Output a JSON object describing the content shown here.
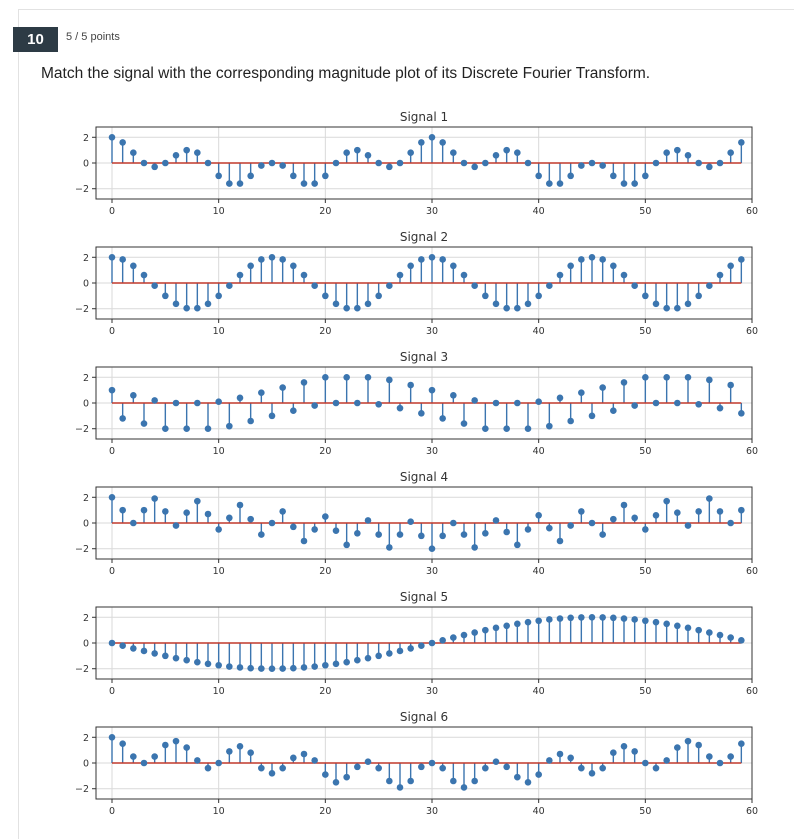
{
  "question": {
    "number": "10",
    "points": "5 / 5 points",
    "text": "Match the signal with the corresponding magnitude plot of its Discrete Fourier Transform."
  },
  "colors": {
    "stem": "#3b75af",
    "baseline": "#c0392b",
    "grid": "#d9d9d9"
  },
  "chart_data": [
    {
      "type": "stem",
      "title": "Signal 1",
      "xlim": [
        -1.5,
        60
      ],
      "ylim": [
        -2.8,
        2.8
      ],
      "xticks": [
        0,
        10,
        20,
        30,
        40,
        50,
        60
      ],
      "yticks": [
        2,
        0,
        -2
      ],
      "x": [
        0,
        1,
        2,
        3,
        4,
        5,
        6,
        7,
        8,
        9,
        10,
        11,
        12,
        13,
        14,
        15,
        16,
        17,
        18,
        19,
        20,
        21,
        22,
        23,
        24,
        25,
        26,
        27,
        28,
        29,
        30,
        31,
        32,
        33,
        34,
        35,
        36,
        37,
        38,
        39,
        40,
        41,
        42,
        43,
        44,
        45,
        46,
        47,
        48,
        49,
        50,
        51,
        52,
        53,
        54,
        55,
        56,
        57,
        58,
        59
      ],
      "values": [
        2.0,
        1.6,
        0.8,
        0.0,
        -0.3,
        0.0,
        0.6,
        1.0,
        0.8,
        0.0,
        -1.0,
        -1.6,
        -1.6,
        -1.0,
        -0.2,
        0.0,
        -0.2,
        -1.0,
        -1.6,
        -1.6,
        -1.0,
        0.0,
        0.8,
        1.0,
        0.6,
        0.0,
        -0.3,
        0.0,
        0.8,
        1.6,
        2.0,
        1.6,
        0.8,
        0.0,
        -0.3,
        0.0,
        0.6,
        1.0,
        0.8,
        0.0,
        -1.0,
        -1.6,
        -1.6,
        -1.0,
        -0.2,
        0.0,
        -0.2,
        -1.0,
        -1.6,
        -1.6,
        -1.0,
        0.0,
        0.8,
        1.0,
        0.6,
        0.0,
        -0.3,
        0.0,
        0.8,
        1.6
      ]
    },
    {
      "type": "stem",
      "title": "Signal 2",
      "xlim": [
        -1.5,
        60
      ],
      "ylim": [
        -2.8,
        2.8
      ],
      "xticks": [
        0,
        10,
        20,
        30,
        40,
        50,
        60
      ],
      "yticks": [
        2,
        0,
        -2
      ],
      "x": [
        0,
        1,
        2,
        3,
        4,
        5,
        6,
        7,
        8,
        9,
        10,
        11,
        12,
        13,
        14,
        15,
        16,
        17,
        18,
        19,
        20,
        21,
        22,
        23,
        24,
        25,
        26,
        27,
        28,
        29,
        30,
        31,
        32,
        33,
        34,
        35,
        36,
        37,
        38,
        39,
        40,
        41,
        42,
        43,
        44,
        45,
        46,
        47,
        48,
        49,
        50,
        51,
        52,
        53,
        54,
        55,
        56,
        57,
        58,
        59
      ],
      "values": [
        2.0,
        1.83,
        1.34,
        0.62,
        -0.21,
        -1.0,
        -1.62,
        -1.96,
        -1.96,
        -1.62,
        -1.0,
        -0.21,
        0.62,
        1.34,
        1.83,
        2.0,
        1.83,
        1.34,
        0.62,
        -0.21,
        -1.0,
        -1.62,
        -1.96,
        -1.96,
        -1.62,
        -1.0,
        -0.21,
        0.62,
        1.34,
        1.83,
        2.0,
        1.83,
        1.34,
        0.62,
        -0.21,
        -1.0,
        -1.62,
        -1.96,
        -1.96,
        -1.62,
        -1.0,
        -0.21,
        0.62,
        1.34,
        1.83,
        2.0,
        1.83,
        1.34,
        0.62,
        -0.21,
        -1.0,
        -1.62,
        -1.96,
        -1.96,
        -1.62,
        -1.0,
        -0.21,
        0.62,
        1.34,
        1.83
      ]
    },
    {
      "type": "stem",
      "title": "Signal 3",
      "xlim": [
        -1.5,
        60
      ],
      "ylim": [
        -2.8,
        2.8
      ],
      "xticks": [
        0,
        10,
        20,
        30,
        40,
        50,
        60
      ],
      "yticks": [
        2,
        0,
        -2
      ],
      "x": [
        0,
        1,
        2,
        3,
        4,
        5,
        6,
        7,
        8,
        9,
        10,
        11,
        12,
        13,
        14,
        15,
        16,
        17,
        18,
        19,
        20,
        21,
        22,
        23,
        24,
        25,
        26,
        27,
        28,
        29,
        30,
        31,
        32,
        33,
        34,
        35,
        36,
        37,
        38,
        39,
        40,
        41,
        42,
        43,
        44,
        45,
        46,
        47,
        48,
        49,
        50,
        51,
        52,
        53,
        54,
        55,
        56,
        57,
        58,
        59
      ],
      "values": [
        1.0,
        -1.2,
        0.6,
        -1.6,
        0.2,
        -2.0,
        0.0,
        -2.0,
        0.0,
        -2.0,
        0.1,
        -1.8,
        0.4,
        -1.4,
        0.8,
        -1.0,
        1.2,
        -0.6,
        1.6,
        -0.2,
        2.0,
        0.0,
        2.0,
        0.0,
        2.0,
        -0.1,
        1.8,
        -0.4,
        1.4,
        -0.8,
        1.0,
        -1.2,
        0.6,
        -1.6,
        0.2,
        -2.0,
        0.0,
        -2.0,
        0.0,
        -2.0,
        0.1,
        -1.8,
        0.4,
        -1.4,
        0.8,
        -1.0,
        1.2,
        -0.6,
        1.6,
        -0.2,
        2.0,
        0.0,
        2.0,
        0.0,
        2.0,
        -0.1,
        1.8,
        -0.4,
        1.4,
        -0.8
      ]
    },
    {
      "type": "stem",
      "title": "Signal 4",
      "xlim": [
        -1.5,
        60
      ],
      "ylim": [
        -2.8,
        2.8
      ],
      "xticks": [
        0,
        10,
        20,
        30,
        40,
        50,
        60
      ],
      "yticks": [
        2,
        0,
        -2
      ],
      "x": [
        0,
        1,
        2,
        3,
        4,
        5,
        6,
        7,
        8,
        9,
        10,
        11,
        12,
        13,
        14,
        15,
        16,
        17,
        18,
        19,
        20,
        21,
        22,
        23,
        24,
        25,
        26,
        27,
        28,
        29,
        30,
        31,
        32,
        33,
        34,
        35,
        36,
        37,
        38,
        39,
        40,
        41,
        42,
        43,
        44,
        45,
        46,
        47,
        48,
        49,
        50,
        51,
        52,
        53,
        54,
        55,
        56,
        57,
        58,
        59
      ],
      "values": [
        2.0,
        1.0,
        0.0,
        1.0,
        1.9,
        0.9,
        -0.2,
        0.8,
        1.7,
        0.7,
        -0.5,
        0.4,
        1.4,
        0.3,
        -0.9,
        0.0,
        0.9,
        -0.3,
        -1.4,
        -0.5,
        0.5,
        -0.6,
        -1.7,
        -0.8,
        0.2,
        -0.9,
        -1.9,
        -0.9,
        0.1,
        -1.0,
        -2.0,
        -1.0,
        0.0,
        -0.9,
        -1.9,
        -0.8,
        0.2,
        -0.7,
        -1.7,
        -0.5,
        0.6,
        -0.4,
        -1.4,
        -0.2,
        0.9,
        0.0,
        -0.9,
        0.3,
        1.4,
        0.4,
        -0.5,
        0.6,
        1.7,
        0.8,
        -0.2,
        0.9,
        1.9,
        0.9,
        0.0,
        1.0
      ]
    },
    {
      "type": "stem",
      "title": "Signal 5",
      "xlim": [
        -1.5,
        60
      ],
      "ylim": [
        -2.8,
        2.8
      ],
      "xticks": [
        0,
        10,
        20,
        30,
        40,
        50,
        60
      ],
      "yticks": [
        2,
        0,
        -2
      ],
      "x": [
        0,
        1,
        2,
        3,
        4,
        5,
        6,
        7,
        8,
        9,
        10,
        11,
        12,
        13,
        14,
        15,
        16,
        17,
        18,
        19,
        20,
        21,
        22,
        23,
        24,
        25,
        26,
        27,
        28,
        29,
        30,
        31,
        32,
        33,
        34,
        35,
        36,
        37,
        38,
        39,
        40,
        41,
        42,
        43,
        44,
        45,
        46,
        47,
        48,
        49,
        50,
        51,
        52,
        53,
        54,
        55,
        56,
        57,
        58,
        59
      ],
      "values": [
        0.0,
        -0.21,
        -0.42,
        -0.62,
        -0.81,
        -1.0,
        -1.18,
        -1.34,
        -1.49,
        -1.62,
        -1.73,
        -1.83,
        -1.9,
        -1.96,
        -1.99,
        -2.0,
        -1.99,
        -1.96,
        -1.9,
        -1.83,
        -1.73,
        -1.62,
        -1.49,
        -1.34,
        -1.18,
        -1.0,
        -0.81,
        -0.62,
        -0.42,
        -0.21,
        0.0,
        0.21,
        0.42,
        0.62,
        0.81,
        1.0,
        1.18,
        1.34,
        1.49,
        1.62,
        1.73,
        1.83,
        1.9,
        1.96,
        1.99,
        2.0,
        1.99,
        1.96,
        1.9,
        1.83,
        1.73,
        1.62,
        1.49,
        1.34,
        1.18,
        1.0,
        0.81,
        0.62,
        0.42,
        0.21
      ]
    },
    {
      "type": "stem",
      "title": "Signal 6",
      "xlim": [
        -1.5,
        60
      ],
      "ylim": [
        -2.8,
        2.8
      ],
      "xticks": [
        0,
        10,
        20,
        30,
        40,
        50,
        60
      ],
      "yticks": [
        2,
        0,
        -2
      ],
      "x": [
        0,
        1,
        2,
        3,
        4,
        5,
        6,
        7,
        8,
        9,
        10,
        11,
        12,
        13,
        14,
        15,
        16,
        17,
        18,
        19,
        20,
        21,
        22,
        23,
        24,
        25,
        26,
        27,
        28,
        29,
        30,
        31,
        32,
        33,
        34,
        35,
        36,
        37,
        38,
        39,
        40,
        41,
        42,
        43,
        44,
        45,
        46,
        47,
        48,
        49,
        50,
        51,
        52,
        53,
        54,
        55,
        56,
        57,
        58,
        59
      ],
      "values": [
        2.0,
        1.5,
        0.5,
        0.0,
        0.5,
        1.4,
        1.7,
        1.2,
        0.2,
        -0.4,
        0.0,
        0.9,
        1.3,
        0.8,
        -0.4,
        -0.8,
        -0.4,
        0.4,
        0.7,
        0.2,
        -0.9,
        -1.5,
        -1.1,
        -0.3,
        0.1,
        -0.4,
        -1.4,
        -1.9,
        -1.4,
        -0.3,
        0.0,
        -0.4,
        -1.4,
        -1.9,
        -1.4,
        -0.4,
        0.1,
        -0.3,
        -1.1,
        -1.5,
        -0.9,
        0.2,
        0.7,
        0.4,
        -0.4,
        -0.8,
        -0.4,
        0.8,
        1.3,
        0.9,
        0.0,
        -0.4,
        0.2,
        1.2,
        1.7,
        1.4,
        0.5,
        0.0,
        0.5,
        1.5
      ]
    }
  ]
}
